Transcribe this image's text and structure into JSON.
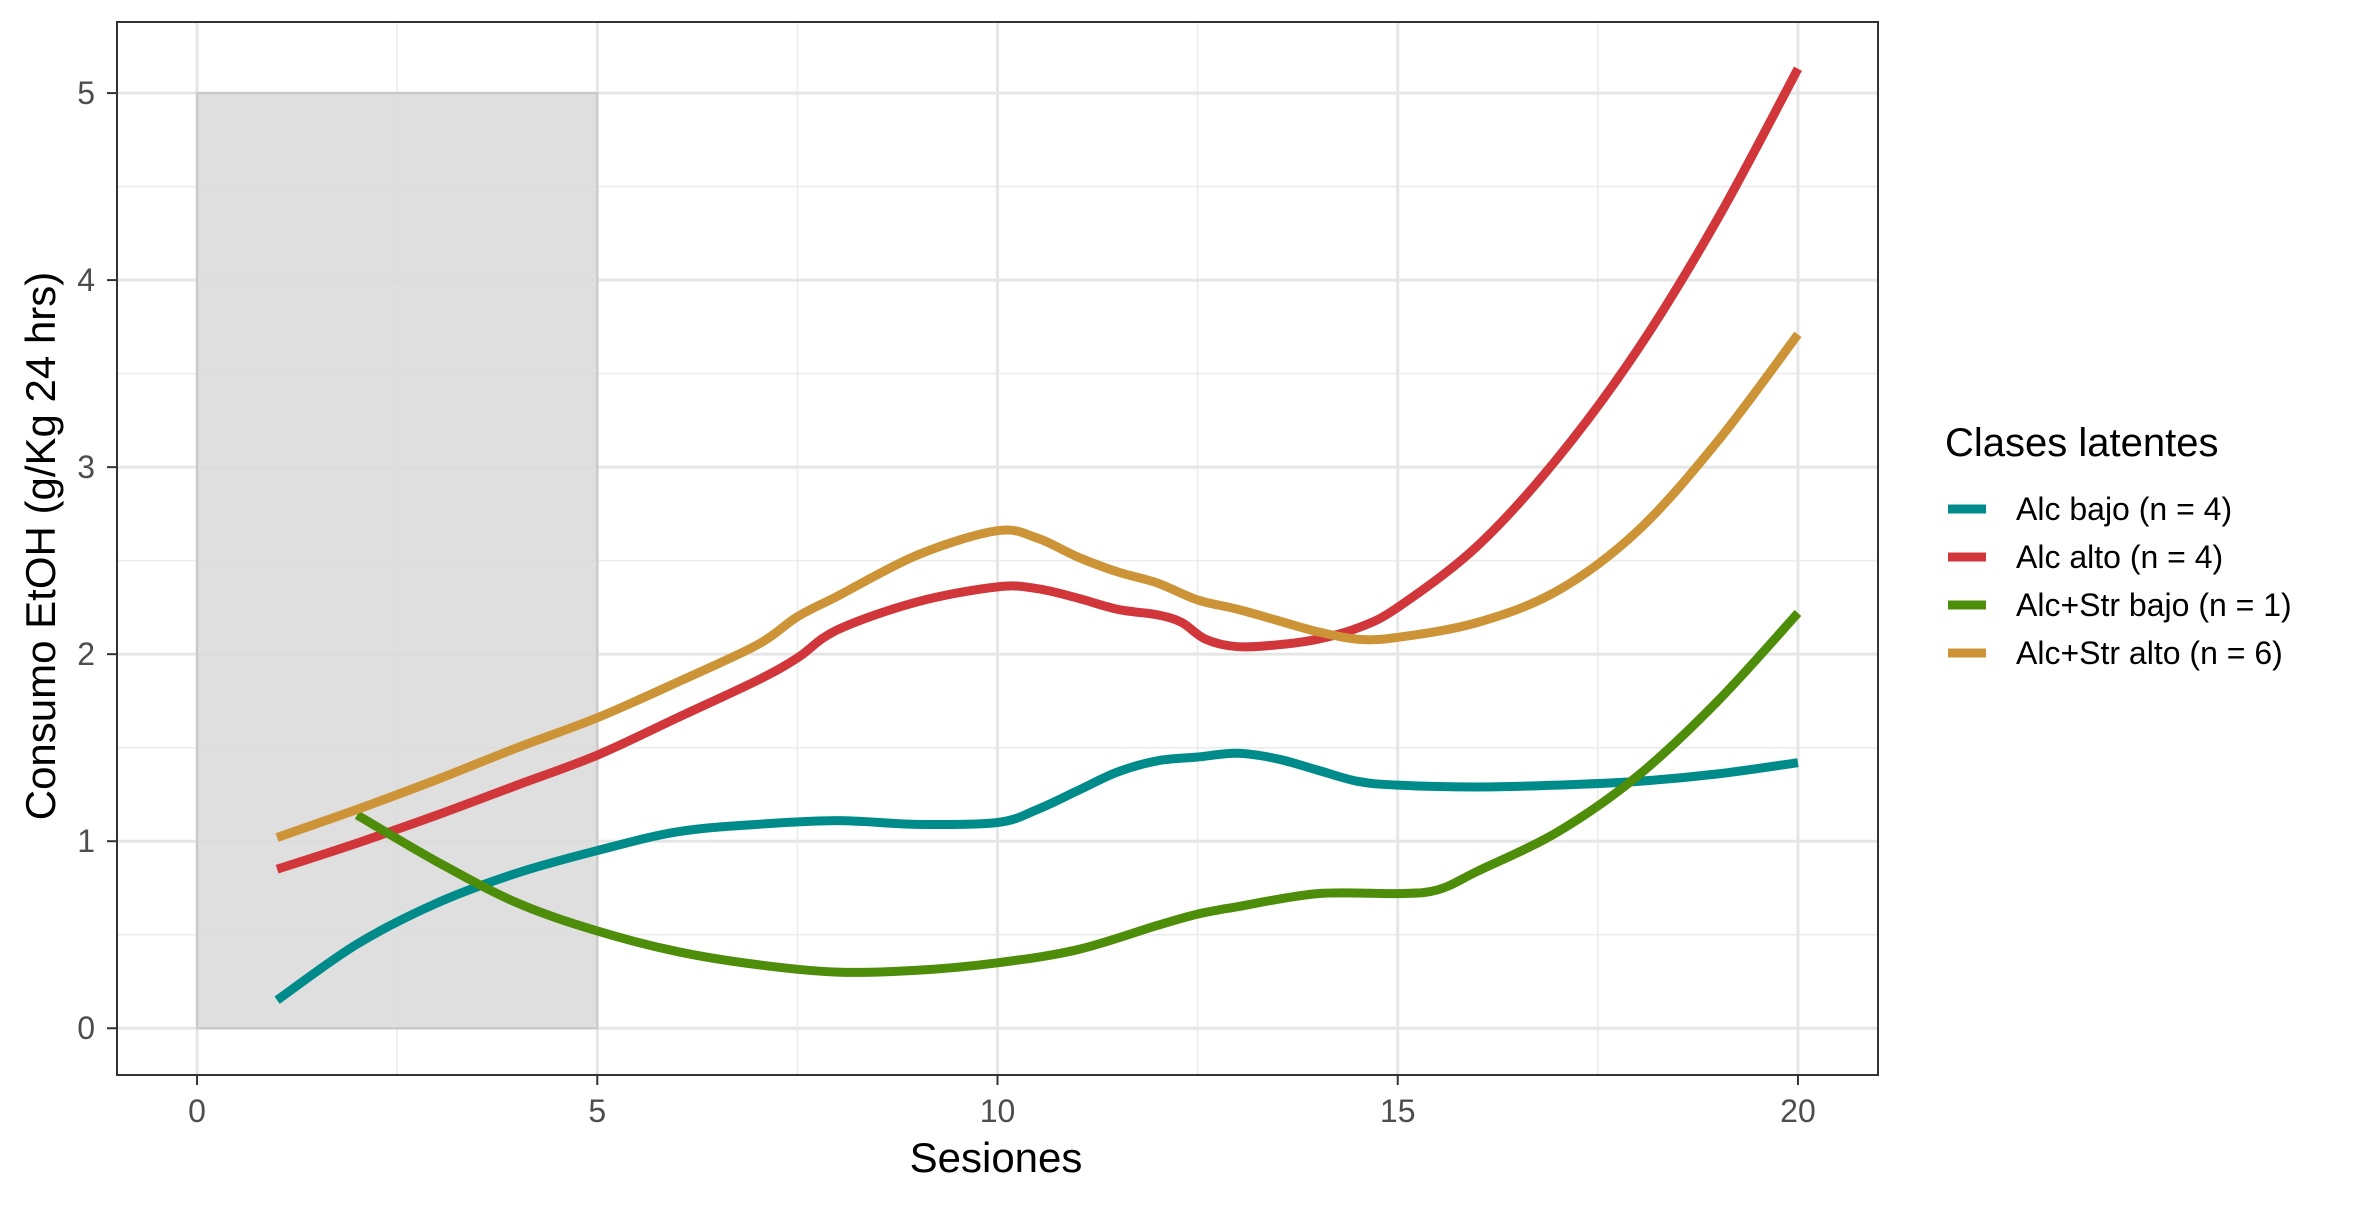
{
  "chart_data": {
    "type": "line",
    "title": "",
    "xlabel": "Sesiones",
    "ylabel": "Consumo EtOH (g/Kg 24 hrs)",
    "xlim": [
      -1,
      21
    ],
    "ylim": [
      -0.25,
      5.38
    ],
    "x_ticks": [
      0,
      5,
      10,
      15,
      20
    ],
    "x_tick_labels": [
      "0",
      "5",
      "10",
      "15",
      "20"
    ],
    "y_ticks": [
      0,
      1,
      2,
      3,
      4,
      5
    ],
    "y_tick_labels": [
      "0",
      "1",
      "2",
      "3",
      "4",
      "5"
    ],
    "grid": true,
    "shaded_region": {
      "x": [
        0,
        5
      ],
      "y": [
        0,
        5
      ],
      "color": "#d9d9d9"
    },
    "legend": {
      "title": "Clases latentes",
      "position": "right"
    },
    "series": [
      {
        "name": "Alc bajo (n = 4)",
        "color": "#008B8B",
        "x": [
          1,
          2,
          3,
          4,
          5,
          6,
          7,
          8,
          9,
          10,
          10.5,
          11,
          11.5,
          12,
          12.5,
          13,
          13.5,
          14,
          14.5,
          15,
          16,
          17,
          18,
          19,
          20
        ],
        "y": [
          0.15,
          0.45,
          0.67,
          0.83,
          0.95,
          1.05,
          1.09,
          1.11,
          1.09,
          1.1,
          1.17,
          1.27,
          1.37,
          1.43,
          1.45,
          1.47,
          1.44,
          1.38,
          1.32,
          1.3,
          1.29,
          1.3,
          1.32,
          1.36,
          1.42
        ]
      },
      {
        "name": "Alc alto (n = 4)",
        "color": "#D0363A",
        "x": [
          1,
          2,
          3,
          4,
          5,
          6,
          7,
          7.5,
          8,
          9,
          10,
          10.5,
          11,
          11.5,
          12,
          12.3,
          12.6,
          13,
          13.5,
          14,
          14.5,
          15,
          16,
          17,
          18,
          19,
          20
        ],
        "y": [
          0.85,
          0.99,
          1.14,
          1.3,
          1.46,
          1.66,
          1.86,
          1.98,
          2.13,
          2.28,
          2.36,
          2.35,
          2.3,
          2.24,
          2.21,
          2.17,
          2.08,
          2.04,
          2.05,
          2.08,
          2.14,
          2.25,
          2.58,
          3.05,
          3.63,
          4.33,
          5.13
        ]
      },
      {
        "name": "Alc+Str bajo (n = 1)",
        "color": "#4D8D0A",
        "x": [
          2,
          3,
          4,
          5,
          6,
          7,
          8,
          9,
          10,
          11,
          12,
          12.5,
          13,
          14,
          15,
          15.5,
          16,
          17,
          18,
          19,
          20
        ],
        "y": [
          1.14,
          0.89,
          0.67,
          0.52,
          0.41,
          0.34,
          0.3,
          0.31,
          0.35,
          0.42,
          0.55,
          0.61,
          0.65,
          0.72,
          0.72,
          0.74,
          0.84,
          1.05,
          1.35,
          1.75,
          2.22
        ]
      },
      {
        "name": "Alc+Str alto (n = 6)",
        "color": "#CC9436",
        "x": [
          1,
          2,
          3,
          4,
          5,
          6,
          7,
          7.5,
          8,
          9,
          10,
          10.5,
          11,
          11.5,
          12,
          12.5,
          13,
          13.5,
          14,
          14.5,
          15,
          16,
          17,
          18,
          19,
          20
        ],
        "y": [
          1.02,
          1.17,
          1.33,
          1.5,
          1.66,
          1.85,
          2.05,
          2.2,
          2.31,
          2.53,
          2.66,
          2.62,
          2.52,
          2.44,
          2.38,
          2.29,
          2.24,
          2.18,
          2.12,
          2.08,
          2.09,
          2.17,
          2.34,
          2.66,
          3.14,
          3.71
        ]
      }
    ]
  }
}
